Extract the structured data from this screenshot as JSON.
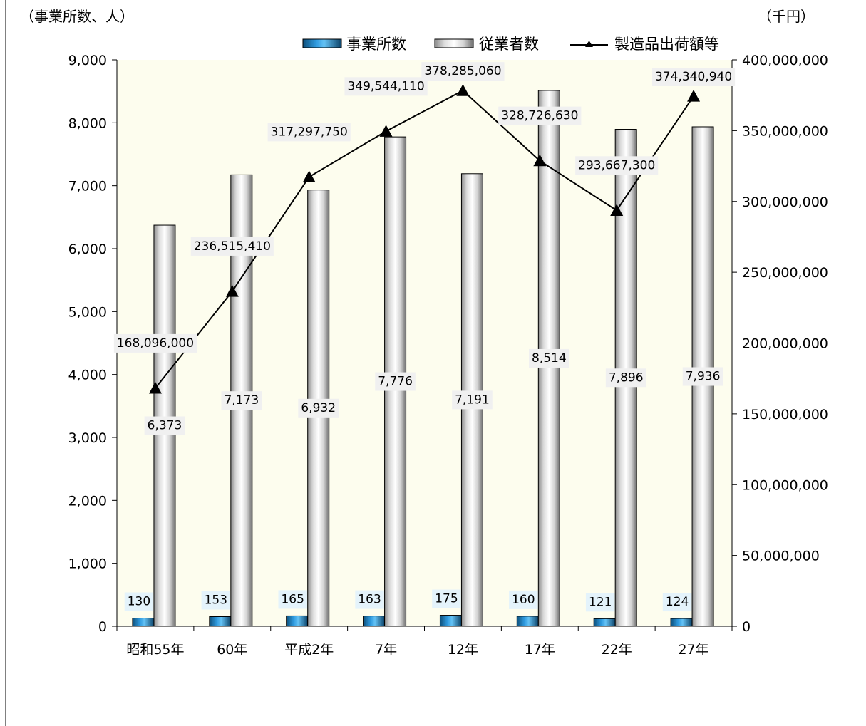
{
  "chart_data": {
    "type": "bar",
    "title": "",
    "categories": [
      "昭和55年",
      "60年",
      "平成2年",
      "7年",
      "12年",
      "17年",
      "22年",
      "27年"
    ],
    "series": [
      {
        "name": "事業所数",
        "kind": "bar",
        "axis": "left",
        "color": "#1f7fb8",
        "values": [
          130,
          153,
          165,
          163,
          175,
          160,
          121,
          124
        ],
        "labels": [
          "130",
          "153",
          "165",
          "163",
          "175",
          "160",
          "121",
          "124"
        ]
      },
      {
        "name": "従業者数",
        "kind": "bar",
        "axis": "left",
        "color": "#e6e6e6",
        "values": [
          6373,
          7173,
          6932,
          7776,
          7191,
          8514,
          7896,
          7936
        ],
        "labels": [
          "6,373",
          "7,173",
          "6,932",
          "7,776",
          "7,191",
          "8,514",
          "7,896",
          "7,936"
        ]
      },
      {
        "name": "製造品出荷額等",
        "kind": "line",
        "axis": "right",
        "color": "#000000",
        "values": [
          168096000,
          236515410,
          317297750,
          349544110,
          378285060,
          328726630,
          293667300,
          374340940
        ],
        "labels": [
          "168,096,000",
          "236,515,410",
          "317,297,750",
          "349,544,110",
          "378,285,060",
          "328,726,630",
          "293,667,300",
          "374,340,940"
        ]
      }
    ],
    "y_left": {
      "unit_label": "（事業所数、人）",
      "ylim": [
        0,
        9000
      ],
      "ticks": [
        0,
        1000,
        2000,
        3000,
        4000,
        5000,
        6000,
        7000,
        8000,
        9000
      ],
      "tick_labels": [
        "0",
        "1,000",
        "2,000",
        "3,000",
        "4,000",
        "5,000",
        "6,000",
        "7,000",
        "8,000",
        "9,000"
      ]
    },
    "y_right": {
      "unit_label": "（千円）",
      "ylim": [
        0,
        400000000
      ],
      "ticks": [
        0,
        50000000,
        100000000,
        150000000,
        200000000,
        250000000,
        300000000,
        350000000,
        400000000
      ],
      "tick_labels": [
        "0",
        "50,000,000",
        "100,000,000",
        "150,000,000",
        "200,000,000",
        "250,000,000",
        "300,000,000",
        "350,000,000",
        "400,000,000"
      ]
    },
    "legend": {
      "position": "top-right"
    },
    "grid": false,
    "colors": {
      "plot_background": "#fdfdee",
      "small_bar_label_bg": "#e4f3fb",
      "label_bg": "#f0f0f0"
    }
  }
}
